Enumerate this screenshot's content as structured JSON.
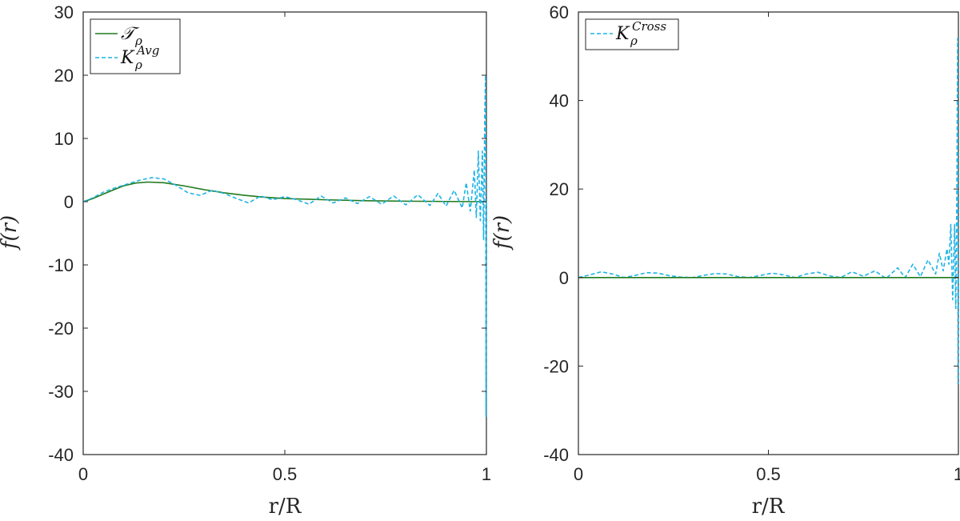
{
  "chart_data": [
    {
      "type": "line",
      "xlabel": "r/R",
      "ylabel": "f(r)",
      "xlim": [
        0,
        1
      ],
      "ylim": [
        -40,
        30
      ],
      "x_ticks": [
        "0",
        "0.5",
        "1"
      ],
      "y_ticks": [
        "-40",
        "-30",
        "-20",
        "-10",
        "0",
        "10",
        "20",
        "30"
      ],
      "legend_position": "top-left",
      "series": [
        {
          "name": "T_rho",
          "legend_main": "𝒯",
          "legend_sub": "ρ",
          "legend_sup": "",
          "color": "#1f7a1f",
          "style": "solid",
          "x": [
            0,
            0.02,
            0.05,
            0.08,
            0.1,
            0.13,
            0.16,
            0.2,
            0.25,
            0.3,
            0.35,
            0.4,
            0.45,
            0.5,
            0.6,
            0.7,
            0.8,
            0.9,
            1.0
          ],
          "y": [
            0,
            0.4,
            1.2,
            2.0,
            2.5,
            2.95,
            3.1,
            3.0,
            2.5,
            1.9,
            1.4,
            1.0,
            0.7,
            0.5,
            0.3,
            0.15,
            0.08,
            0.03,
            0
          ]
        },
        {
          "name": "K_rho^Avg",
          "legend_main": "K",
          "legend_sub": "ρ",
          "legend_sup": "Avg",
          "color": "#1fb4e6",
          "style": "dashed",
          "x": [
            0,
            0.02,
            0.05,
            0.08,
            0.11,
            0.14,
            0.17,
            0.2,
            0.23,
            0.26,
            0.29,
            0.32,
            0.35,
            0.38,
            0.41,
            0.44,
            0.47,
            0.5,
            0.53,
            0.56,
            0.59,
            0.62,
            0.65,
            0.68,
            0.71,
            0.74,
            0.77,
            0.8,
            0.83,
            0.86,
            0.88,
            0.9,
            0.92,
            0.94,
            0.95,
            0.96,
            0.97,
            0.975,
            0.98,
            0.985,
            0.99,
            0.993,
            0.996,
            0.998,
            0.999,
            1.0
          ],
          "y": [
            0,
            0.5,
            1.5,
            2.2,
            2.8,
            3.4,
            3.8,
            3.6,
            2.6,
            1.4,
            1.0,
            1.8,
            1.3,
            0.5,
            -0.2,
            0.9,
            0.3,
            0.8,
            0.3,
            -0.4,
            0.9,
            -0.2,
            0.6,
            -0.3,
            0.8,
            -0.4,
            0.9,
            -0.5,
            1.1,
            -0.6,
            1.3,
            -0.7,
            1.8,
            -1.0,
            3.0,
            -1.5,
            5.0,
            -2.5,
            8.0,
            -3.0,
            8.0,
            -6.0,
            14.0,
            20.0,
            -34.0,
            0
          ]
        }
      ]
    },
    {
      "type": "line",
      "xlabel": "r/R",
      "ylabel": "f(r)",
      "xlim": [
        0,
        1
      ],
      "ylim": [
        -40,
        60
      ],
      "x_ticks": [
        "0",
        "0.5",
        "1"
      ],
      "y_ticks": [
        "-40",
        "-20",
        "0",
        "20",
        "40",
        "60"
      ],
      "legend_position": "top-left",
      "series": [
        {
          "name": "K_rho^Cross",
          "legend_main": "K",
          "legend_sub": "ρ",
          "legend_sup": "Cross",
          "color": "#1fb4e6",
          "style": "dashed",
          "x": [
            0,
            0.03,
            0.06,
            0.09,
            0.12,
            0.15,
            0.18,
            0.21,
            0.24,
            0.27,
            0.3,
            0.33,
            0.36,
            0.39,
            0.42,
            0.45,
            0.48,
            0.51,
            0.54,
            0.57,
            0.6,
            0.63,
            0.66,
            0.69,
            0.72,
            0.75,
            0.78,
            0.81,
            0.84,
            0.86,
            0.88,
            0.9,
            0.92,
            0.94,
            0.95,
            0.96,
            0.97,
            0.975,
            0.98,
            0.985,
            0.99,
            0.993,
            0.996,
            0.998,
            0.999,
            1.0
          ],
          "y": [
            0,
            0.6,
            1.3,
            0.8,
            0.0,
            0.5,
            1.1,
            1.0,
            0.4,
            0.1,
            0.0,
            0.5,
            0.9,
            0.8,
            0.2,
            0.0,
            0.5,
            1.0,
            0.6,
            0.0,
            0.8,
            1.2,
            0.4,
            0.0,
            1.3,
            0.3,
            1.5,
            -0.2,
            2.2,
            0.0,
            3.0,
            0.2,
            4.0,
            0.8,
            5.5,
            1.5,
            6.5,
            3.0,
            12.0,
            -5.0,
            12.0,
            -7.0,
            20.0,
            54.0,
            -24.0,
            0
          ]
        },
        {
          "name": "",
          "legend_main": "",
          "legend_sub": "",
          "legend_sup": "",
          "color": "#1f7a1f",
          "style": "solid",
          "x": [
            0,
            1
          ],
          "y": [
            0,
            0
          ]
        }
      ]
    }
  ]
}
